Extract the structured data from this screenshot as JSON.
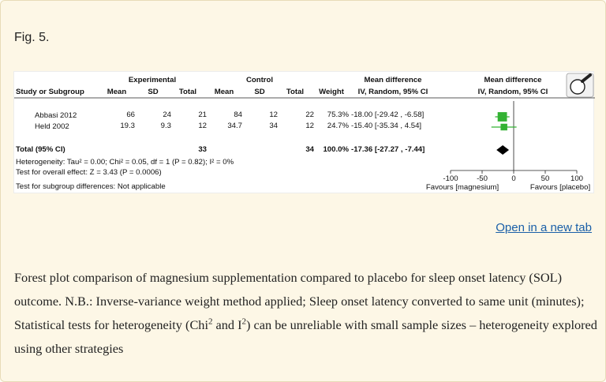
{
  "figure": {
    "label": "Fig. 5.",
    "open_link": "Open in a new tab",
    "caption": {
      "p1": "Forest plot comparison of magnesium supplementation compared to placebo for sleep onset latency (SOL) outcome. N.B.: Inverse-variance weight method applied; Sleep onset latency converted to same unit (minutes); Statistical tests for heterogeneity (Chi",
      "sup1": "2",
      "p2": " and I",
      "sup2": "2",
      "p3": ") can be unreliable with small sample sizes – heterogeneity explored using other strategies"
    }
  },
  "forest": {
    "group_headers": {
      "experimental": "Experimental",
      "control": "Control",
      "md_left": "Mean difference",
      "md_right": "Mean difference"
    },
    "columns": {
      "study": "Study or Subgroup",
      "mean1": "Mean",
      "sd1": "SD",
      "total1": "Total",
      "mean2": "Mean",
      "sd2": "SD",
      "total2": "Total",
      "weight": "Weight",
      "ci_left": "IV, Random, 95% CI",
      "ci_right": "IV, Random, 95% CI"
    },
    "studies": [
      {
        "name": "Abbasi 2012",
        "mean1": "66",
        "sd1": "24",
        "total1": "21",
        "mean2": "84",
        "sd2": "12",
        "total2": "22",
        "weight": "75.3%",
        "ci": "-18.00 [-29.42 , -6.58]"
      },
      {
        "name": "Held 2002",
        "mean1": "19.3",
        "sd1": "9.3",
        "total1": "12",
        "mean2": "34.7",
        "sd2": "34",
        "total2": "12",
        "weight": "24.7%",
        "ci": "-15.40 [-35.34 , 4.54]"
      }
    ],
    "total": {
      "label": "Total (95% CI)",
      "total1": "33",
      "total2": "34",
      "weight": "100.0%",
      "ci": "-17.36 [-27.27 , -7.44]"
    },
    "heterogeneity": "Heterogeneity: Tau² = 0.00; Chi² = 0.05, df = 1 (P = 0.82); I² = 0%",
    "overall_effect": "Test for overall effect: Z = 3.43 (P = 0.0006)",
    "subgroup": "Test for subgroup differences: Not applicable",
    "axis": {
      "ticks": [
        {
          "value": -100,
          "label": "-100"
        },
        {
          "value": -50,
          "label": "-50"
        },
        {
          "value": 0,
          "label": "0"
        },
        {
          "value": 50,
          "label": "50"
        },
        {
          "value": 100,
          "label": "100"
        }
      ],
      "favours_left": "Favours [magnesium]",
      "favours_right": "Favours [placebo]"
    },
    "plot_values": {
      "studies": [
        {
          "md": -18.0,
          "lo": -29.42,
          "hi": -6.58,
          "weight": 75.3
        },
        {
          "md": -15.4,
          "lo": -35.34,
          "hi": 4.54,
          "weight": 24.7
        }
      ],
      "total": {
        "md": -17.36,
        "lo": -27.27,
        "hi": -7.44
      }
    },
    "colors": {
      "marker": "#33b233",
      "diamond": "#000000"
    }
  }
}
